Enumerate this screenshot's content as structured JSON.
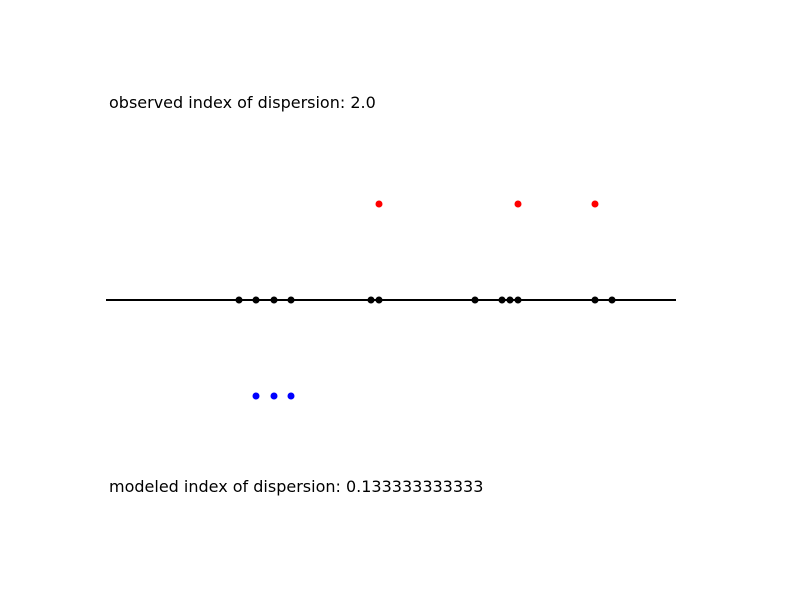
{
  "chart_data": {
    "type": "scatter",
    "title": "",
    "xlabel": "",
    "ylabel": "",
    "axes_visible": false,
    "grid": false,
    "xlim": [
      0,
      1
    ],
    "ylim": [
      -2,
      2
    ],
    "annotations": {
      "observed": "observed index of dispersion: 2.0",
      "modeled": "modeled index of dispersion: 0.133333333333"
    },
    "baseline": {
      "y": 0,
      "x_range": [
        0,
        1
      ],
      "color": "#000000"
    },
    "series": [
      {
        "color": "#000000",
        "y": 0,
        "x": [
          0.2333,
          0.2632,
          0.2947,
          0.3246,
          0.4649,
          0.4789,
          0.6474,
          0.6947,
          0.7088,
          0.7228,
          0.8579,
          0.8877
        ]
      },
      {
        "color": "#ff0000",
        "y": 1,
        "x": [
          0.4789,
          0.7228,
          0.8579
        ]
      },
      {
        "color": "#0000ff",
        "y": -1,
        "x": [
          0.2632,
          0.2947,
          0.3246
        ]
      }
    ]
  }
}
